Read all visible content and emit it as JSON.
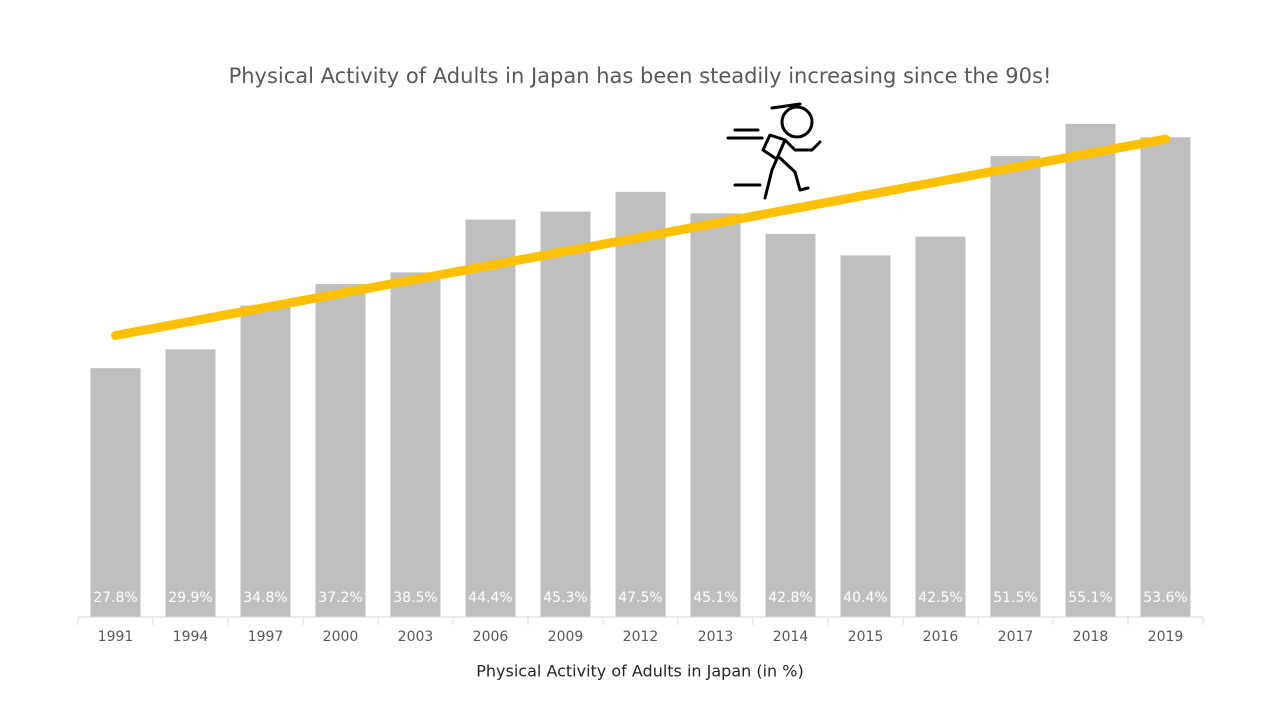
{
  "chart_data": {
    "type": "bar",
    "title": "Physical Activity of Adults in Japan has been steadily increasing since the 90s!",
    "x_label": "Physical Activity of Adults in Japan (in %)",
    "categories": [
      "1991",
      "1994",
      "1997",
      "2000",
      "2003",
      "2006",
      "2009",
      "2012",
      "2013",
      "2014",
      "2015",
      "2016",
      "2017",
      "2018",
      "2019"
    ],
    "values": [
      27.8,
      29.9,
      34.8,
      37.2,
      38.5,
      44.4,
      45.3,
      47.5,
      45.1,
      42.8,
      40.4,
      42.5,
      51.5,
      55.1,
      53.6
    ],
    "value_labels": [
      "27.8%",
      "29.9%",
      "34.8%",
      "37.2%",
      "38.5%",
      "44.4%",
      "45.3%",
      "47.5%",
      "45.1%",
      "42.8%",
      "40.4%",
      "42.5%",
      "51.5%",
      "55.1%",
      "53.6%"
    ],
    "color": "#bfbfbf",
    "trendline": "linear",
    "trendline_color": "#ffc000",
    "ylim": [
      0,
      60
    ]
  }
}
